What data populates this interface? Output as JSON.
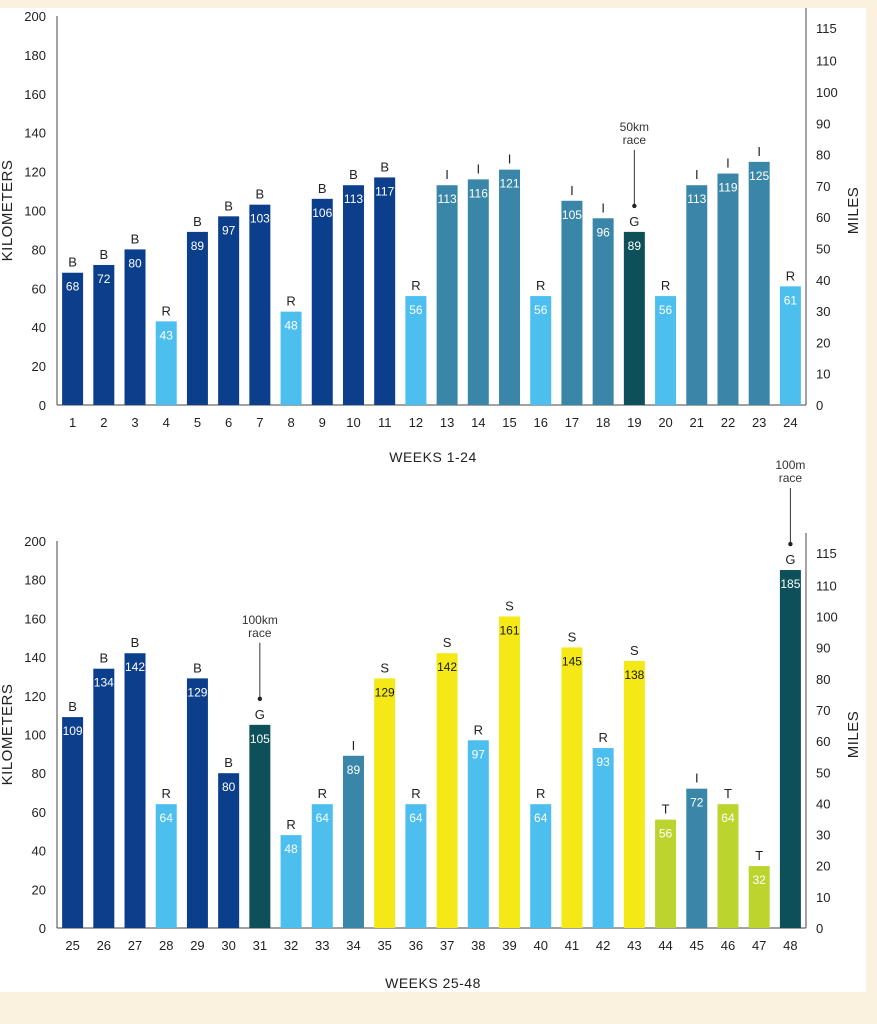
{
  "colors": {
    "B": "#0b3f8c",
    "R": "#4cbfee",
    "I": "#3a86a8",
    "G": "#0e5059",
    "S": "#f4e816",
    "T": "#bcd52e",
    "background": "#fbf1df"
  },
  "chart_data": [
    {
      "type": "bar",
      "title": "",
      "xlabel": "WEEKS 1-24",
      "ylabel": "KILOMETERS",
      "y2label": "MILES",
      "ylim": [
        0,
        200
      ],
      "yticks": [
        "0",
        "20",
        "40",
        "60",
        "80",
        "100",
        "120",
        "140",
        "160",
        "180",
        "200"
      ],
      "y2ticks": [
        "0",
        "10",
        "20",
        "30",
        "40",
        "50",
        "60",
        "70",
        "80",
        "90",
        "100",
        "110",
        "115"
      ],
      "categories": [
        "1",
        "2",
        "3",
        "4",
        "5",
        "6",
        "7",
        "8",
        "9",
        "10",
        "11",
        "12",
        "13",
        "14",
        "15",
        "16",
        "17",
        "18",
        "19",
        "20",
        "21",
        "22",
        "23",
        "24"
      ],
      "values": [
        68,
        72,
        80,
        43,
        89,
        97,
        103,
        48,
        106,
        113,
        117,
        56,
        113,
        116,
        121,
        56,
        105,
        96,
        89,
        56,
        113,
        119,
        125,
        61
      ],
      "codes": [
        "B",
        "B",
        "B",
        "R",
        "B",
        "B",
        "B",
        "R",
        "B",
        "B",
        "B",
        "R",
        "I",
        "I",
        "I",
        "R",
        "I",
        "I",
        "G",
        "R",
        "I",
        "I",
        "I",
        "R"
      ],
      "annotations": [
        {
          "week": "19",
          "line1": "50km",
          "line2": "race"
        }
      ]
    },
    {
      "type": "bar",
      "title": "",
      "xlabel": "WEEKS 25-48",
      "ylabel": "KILOMETERS",
      "y2label": "MILES",
      "ylim": [
        0,
        200
      ],
      "yticks": [
        "0",
        "20",
        "40",
        "60",
        "80",
        "100",
        "120",
        "140",
        "160",
        "180",
        "200"
      ],
      "y2ticks": [
        "0",
        "10",
        "20",
        "30",
        "40",
        "50",
        "60",
        "70",
        "80",
        "90",
        "100",
        "110",
        "115"
      ],
      "categories": [
        "25",
        "26",
        "27",
        "28",
        "29",
        "30",
        "31",
        "32",
        "33",
        "34",
        "35",
        "36",
        "37",
        "38",
        "39",
        "40",
        "41",
        "42",
        "43",
        "44",
        "45",
        "46",
        "47",
        "48"
      ],
      "values": [
        109,
        134,
        142,
        64,
        129,
        80,
        105,
        48,
        64,
        89,
        129,
        64,
        142,
        97,
        161,
        64,
        145,
        93,
        138,
        56,
        72,
        64,
        32,
        185
      ],
      "codes": [
        "B",
        "B",
        "B",
        "R",
        "B",
        "B",
        "G",
        "R",
        "R",
        "I",
        "S",
        "R",
        "S",
        "R",
        "S",
        "R",
        "S",
        "R",
        "S",
        "T",
        "I",
        "T",
        "T",
        "G"
      ],
      "annotations": [
        {
          "week": "31",
          "line1": "100km",
          "line2": "race"
        },
        {
          "week": "48",
          "line1": "100m",
          "line2": "race"
        }
      ]
    }
  ]
}
